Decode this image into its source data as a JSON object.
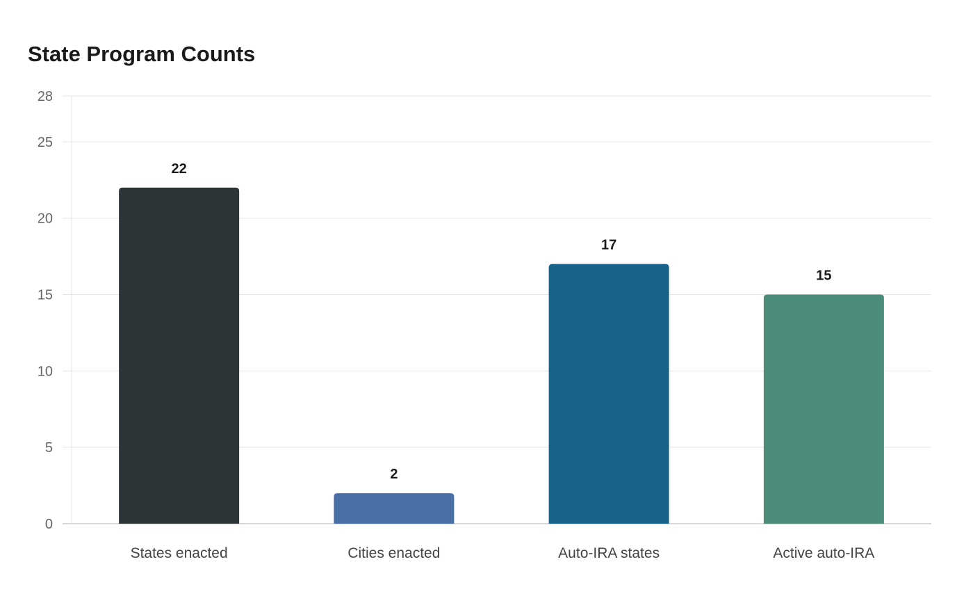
{
  "chart_data": {
    "type": "bar",
    "title": "State Program Counts",
    "xlabel": "",
    "ylabel": "",
    "categories": [
      "States enacted",
      "Cities enacted",
      "Auto-IRA states",
      "Active auto-IRA"
    ],
    "values": [
      22,
      2,
      17,
      15
    ],
    "colors": [
      "#2d3538",
      "#4a6fa5",
      "#186289",
      "#4d8c7a"
    ],
    "ylim": [
      0,
      28
    ],
    "yticks": [
      0,
      5,
      10,
      15,
      20,
      25,
      28
    ],
    "grid": true,
    "legend": "none",
    "data_labels": true
  }
}
